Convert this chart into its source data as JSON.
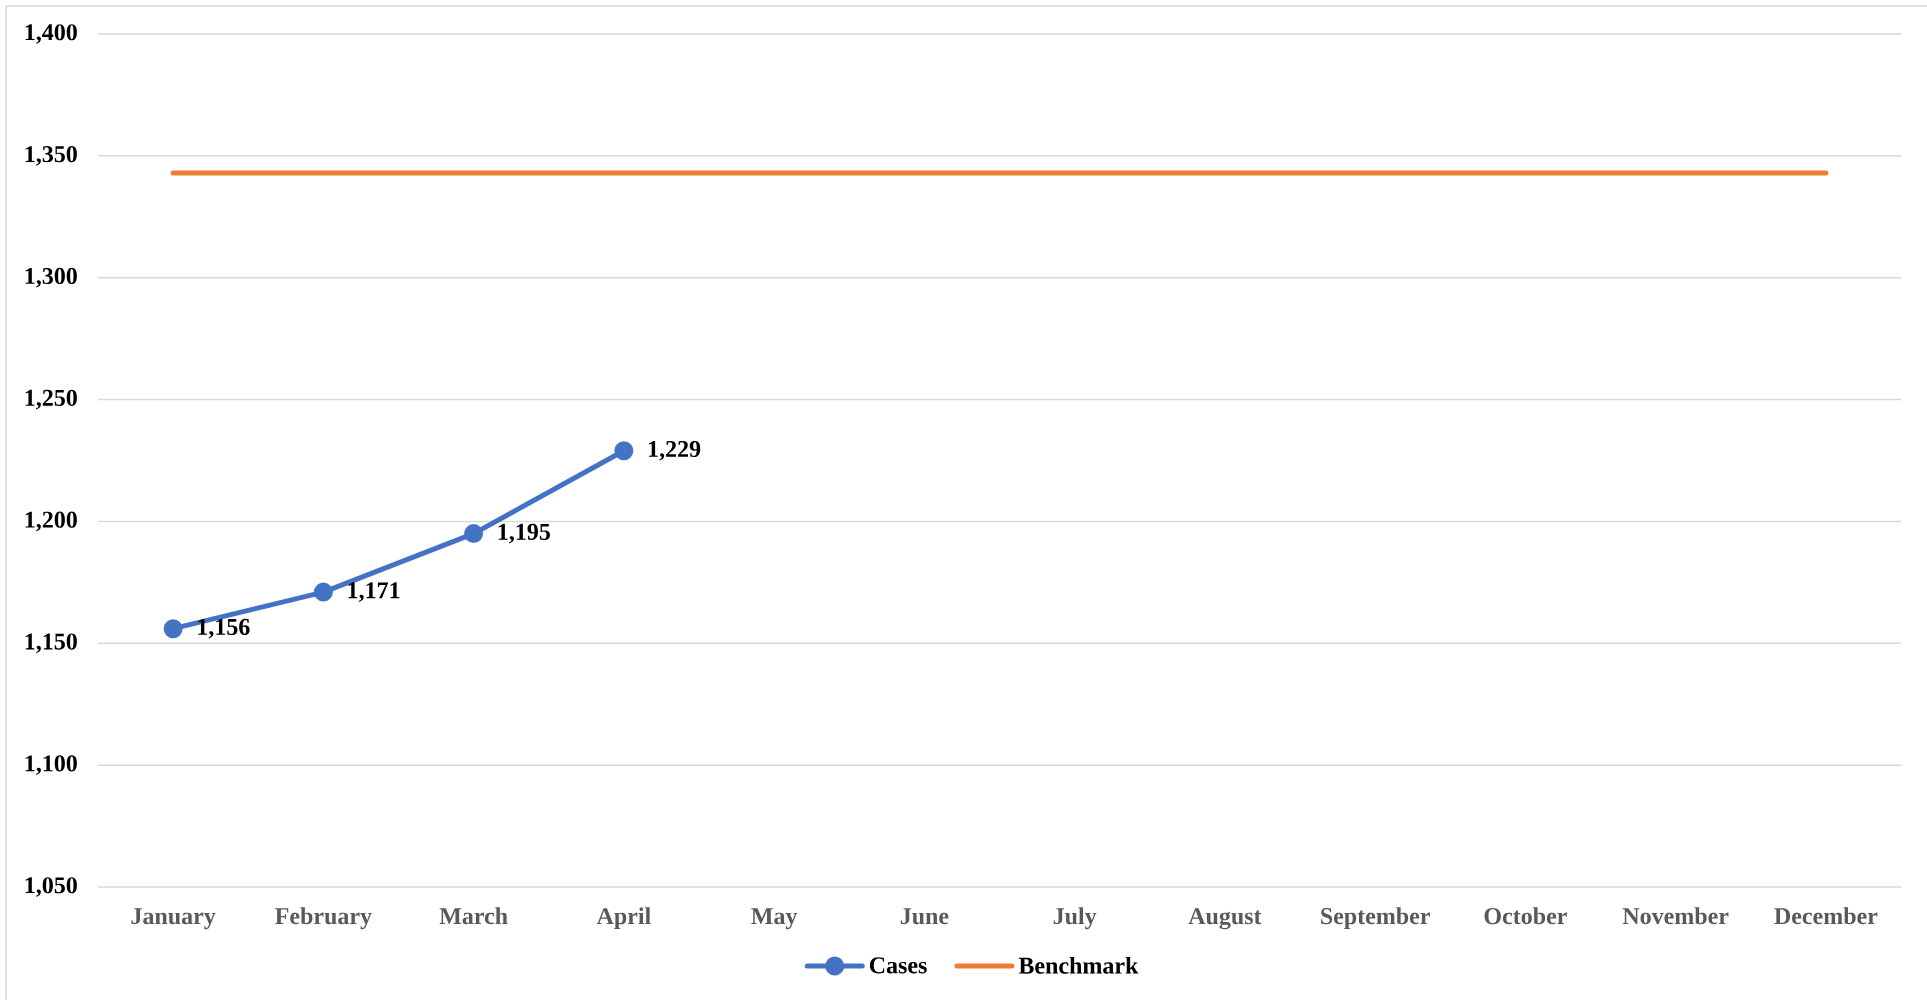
{
  "chart_data": {
    "type": "line",
    "categories": [
      "January",
      "February",
      "March",
      "April",
      "May",
      "June",
      "July",
      "August",
      "September",
      "October",
      "November",
      "December"
    ],
    "series": [
      {
        "name": "Cases",
        "color": "#4472c4",
        "marker": "circle",
        "values": [
          1156,
          1171,
          1195,
          1229,
          null,
          null,
          null,
          null,
          null,
          null,
          null,
          null
        ],
        "value_labels": [
          "1,156",
          "1,171",
          "1,195",
          "1,229",
          null,
          null,
          null,
          null,
          null,
          null,
          null,
          null
        ]
      },
      {
        "name": "Benchmark",
        "color": "#ed7d31",
        "marker": "none",
        "values": [
          1343,
          1343,
          1343,
          1343,
          1343,
          1343,
          1343,
          1343,
          1343,
          1343,
          1343,
          1343
        ]
      }
    ],
    "ylim": [
      1050,
      1400
    ],
    "yticks": [
      {
        "value": 1050,
        "label": "1,050"
      },
      {
        "value": 1100,
        "label": "1,100"
      },
      {
        "value": 1150,
        "label": "1,150"
      },
      {
        "value": 1200,
        "label": "1,200"
      },
      {
        "value": 1250,
        "label": "1,250"
      },
      {
        "value": 1300,
        "label": "1,300"
      },
      {
        "value": 1350,
        "label": "1,350"
      },
      {
        "value": 1400,
        "label": "1,400"
      }
    ],
    "grid": "y",
    "legend": "bottom",
    "line_style": "solid"
  }
}
